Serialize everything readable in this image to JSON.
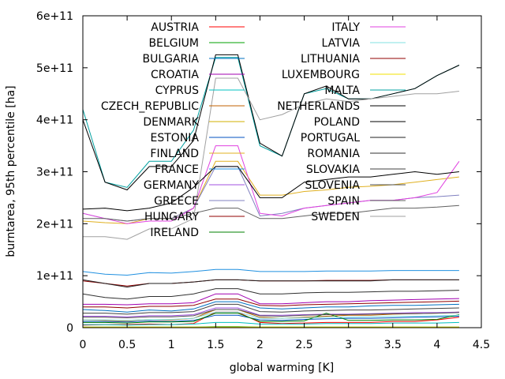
{
  "chart_data": {
    "type": "line",
    "xlabel": "global warming [K]",
    "ylabel": "burntarea, 95th percentile [ha]",
    "xlim": [
      0,
      4.5
    ],
    "ylim": [
      0,
      600000000000
    ],
    "xticks": [
      {
        "value": 0,
        "label": "0"
      },
      {
        "value": 0.5,
        "label": "0.5"
      },
      {
        "value": 1,
        "label": "1"
      },
      {
        "value": 1.5,
        "label": "1.5"
      },
      {
        "value": 2,
        "label": "2"
      },
      {
        "value": 2.5,
        "label": "2.5"
      },
      {
        "value": 3,
        "label": "3"
      },
      {
        "value": 3.5,
        "label": "3.5"
      },
      {
        "value": 4,
        "label": "4"
      },
      {
        "value": 4.5,
        "label": "4.5"
      }
    ],
    "yticks": [
      {
        "value": 0,
        "label": "0"
      },
      {
        "value": 100000000000,
        "label": "1e+11"
      },
      {
        "value": 200000000000,
        "label": "2e+11"
      },
      {
        "value": 300000000000,
        "label": "3e+11"
      },
      {
        "value": 400000000000,
        "label": "4e+11"
      },
      {
        "value": 500000000000,
        "label": "5e+11"
      },
      {
        "value": 600000000000,
        "label": "6e+11"
      }
    ],
    "grid": false,
    "legend_position": "top-right",
    "x": [
      0,
      0.25,
      0.5,
      0.75,
      1,
      1.25,
      1.5,
      1.75,
      2,
      2.25,
      2.5,
      2.75,
      3,
      3.25,
      3.5,
      3.75,
      4,
      4.25
    ],
    "series": [
      {
        "name": "AUSTRIA",
        "color": "#ff0000",
        "values": [
          5000000000.0,
          6000000000.0,
          6000000000.0,
          7000000000.0,
          6000000000.0,
          8000000000.0,
          30000000000.0,
          30000000000.0,
          10000000000.0,
          8000000000.0,
          9000000000.0,
          10000000000.0,
          10000000000.0,
          10000000000.0,
          12000000000.0,
          12000000000.0,
          15000000000.0,
          20000000000.0
        ]
      },
      {
        "name": "BELGIUM",
        "color": "#00a000",
        "values": [
          1000000000.0,
          1000000000.0,
          1000000000.0,
          1000000000.0,
          1000000000.0,
          1000000000.0,
          2000000000.0,
          2000000000.0,
          1000000000.0,
          1000000000.0,
          1000000000.0,
          1000000000.0,
          1000000000.0,
          1000000000.0,
          1000000000.0,
          1000000000.0,
          1000000000.0,
          1000000000.0
        ]
      },
      {
        "name": "BULGARIA",
        "color": "#0070c0",
        "values": [
          35000000000.0,
          33000000000.0,
          30000000000.0,
          34000000000.0,
          32000000000.0,
          36000000000.0,
          50000000000.0,
          50000000000.0,
          38000000000.0,
          36000000000.0,
          38000000000.0,
          40000000000.0,
          40000000000.0,
          42000000000.0,
          43000000000.0,
          43000000000.0,
          44000000000.0,
          45000000000.0
        ]
      },
      {
        "name": "CROATIA",
        "color": "#a000b0",
        "values": [
          45000000000.0,
          45000000000.0,
          44000000000.0,
          46000000000.0,
          46000000000.0,
          48000000000.0,
          65000000000.0,
          65000000000.0,
          46000000000.0,
          46000000000.0,
          48000000000.0,
          50000000000.0,
          50000000000.0,
          52000000000.0,
          53000000000.0,
          54000000000.0,
          55000000000.0,
          56000000000.0
        ]
      },
      {
        "name": "CYPRUS",
        "color": "#00c0c0",
        "values": [
          6000000000.0,
          6000000000.0,
          5000000000.0,
          6000000000.0,
          6000000000.0,
          7000000000.0,
          10000000000.0,
          10000000000.0,
          7000000000.0,
          7000000000.0,
          7000000000.0,
          8000000000.0,
          8000000000.0,
          8000000000.0,
          9000000000.0,
          9000000000.0,
          9000000000.0,
          10000000000.0
        ]
      },
      {
        "name": "CZECH_REPUBLIC",
        "color": "#c06000",
        "values": [
          15000000000.0,
          14000000000.0,
          13000000000.0,
          16000000000.0,
          15000000000.0,
          18000000000.0,
          35000000000.0,
          35000000000.0,
          20000000000.0,
          18000000000.0,
          20000000000.0,
          22000000000.0,
          24000000000.0,
          24000000000.0,
          26000000000.0,
          27000000000.0,
          28000000000.0,
          30000000000.0
        ]
      },
      {
        "name": "DENMARK",
        "color": "#d0b000",
        "values": [
          0,
          0,
          0,
          0,
          0,
          0,
          0,
          0,
          0,
          0,
          0,
          0,
          0,
          0,
          0,
          0,
          0,
          0
        ]
      },
      {
        "name": "ESTONIA",
        "color": "#0050c0",
        "values": [
          12000000000.0,
          12000000000.0,
          11000000000.0,
          13000000000.0,
          12000000000.0,
          14000000000.0,
          24000000000.0,
          24000000000.0,
          15000000000.0,
          14000000000.0,
          16000000000.0,
          17000000000.0,
          18000000000.0,
          18000000000.0,
          19000000000.0,
          20000000000.0,
          21000000000.0,
          22000000000.0
        ]
      },
      {
        "name": "FINLAND",
        "color": "#e0b020",
        "values": [
          205000000000.0,
          202000000000.0,
          200000000000.0,
          210000000000.0,
          210000000000.0,
          230000000000.0,
          320000000000.0,
          320000000000.0,
          255000000000.0,
          255000000000.0,
          262000000000.0,
          265000000000.0,
          270000000000.0,
          272000000000.0,
          275000000000.0,
          280000000000.0,
          285000000000.0,
          290000000000.0
        ]
      },
      {
        "name": "FRANCE",
        "color": "#2090e0",
        "values": [
          108000000000.0,
          103000000000.0,
          101000000000.0,
          106000000000.0,
          105000000000.0,
          108000000000.0,
          112000000000.0,
          112000000000.0,
          108000000000.0,
          108000000000.0,
          108000000000.0,
          109000000000.0,
          109000000000.0,
          109000000000.0,
          110000000000.0,
          110000000000.0,
          110000000000.0,
          110000000000.0
        ]
      },
      {
        "name": "GERMANY",
        "color": "#a050e0",
        "values": [
          22000000000.0,
          22000000000.0,
          21000000000.0,
          23000000000.0,
          23000000000.0,
          25000000000.0,
          38000000000.0,
          38000000000.0,
          24000000000.0,
          24000000000.0,
          25000000000.0,
          26000000000.0,
          26000000000.0,
          27000000000.0,
          28000000000.0,
          29000000000.0,
          29000000000.0,
          30000000000.0
        ]
      },
      {
        "name": "GREECE",
        "color": "#8080c0",
        "values": [
          220000000000.0,
          210000000000.0,
          205000000000.0,
          210000000000.0,
          210000000000.0,
          230000000000.0,
          310000000000.0,
          310000000000.0,
          215000000000.0,
          220000000000.0,
          230000000000.0,
          235000000000.0,
          240000000000.0,
          245000000000.0,
          245000000000.0,
          250000000000.0,
          252000000000.0,
          255000000000.0
        ]
      },
      {
        "name": "HUNGARY",
        "color": "#900000",
        "values": [
          90000000000.0,
          85000000000.0,
          80000000000.0,
          85000000000.0,
          85000000000.0,
          88000000000.0,
          92000000000.0,
          92000000000.0,
          90000000000.0,
          90000000000.0,
          90000000000.0,
          91000000000.0,
          91000000000.0,
          91000000000.0,
          92000000000.0,
          92000000000.0,
          92000000000.0,
          92000000000.0
        ]
      },
      {
        "name": "IRELAND",
        "color": "#008000",
        "values": [
          10000000000.0,
          10000000000.0,
          9000000000.0,
          11000000000.0,
          11000000000.0,
          12000000000.0,
          28000000000.0,
          28000000000.0,
          12000000000.0,
          12000000000.0,
          13000000000.0,
          28000000000.0,
          14000000000.0,
          14000000000.0,
          15000000000.0,
          15000000000.0,
          16000000000.0,
          25000000000.0
        ]
      },
      {
        "name": "ITALY",
        "color": "#e040e0",
        "values": [
          220000000000.0,
          210000000000.0,
          200000000000.0,
          205000000000.0,
          205000000000.0,
          230000000000.0,
          350000000000.0,
          350000000000.0,
          220000000000.0,
          215000000000.0,
          230000000000.0,
          235000000000.0,
          240000000000.0,
          245000000000.0,
          245000000000.0,
          250000000000.0,
          260000000000.0,
          320000000000.0
        ]
      },
      {
        "name": "LATVIA",
        "color": "#80e0e0",
        "values": [
          15000000000.0,
          15000000000.0,
          14000000000.0,
          16000000000.0,
          16000000000.0,
          18000000000.0,
          30000000000.0,
          30000000000.0,
          18000000000.0,
          18000000000.0,
          19000000000.0,
          20000000000.0,
          20000000000.0,
          21000000000.0,
          22000000000.0,
          22000000000.0,
          23000000000.0,
          24000000000.0
        ]
      },
      {
        "name": "LITHUANIA",
        "color": "#900000",
        "values": [
          40000000000.0,
          40000000000.0,
          38000000000.0,
          41000000000.0,
          41000000000.0,
          43000000000.0,
          55000000000.0,
          55000000000.0,
          43000000000.0,
          42000000000.0,
          44000000000.0,
          45000000000.0,
          46000000000.0,
          47000000000.0,
          48000000000.0,
          49000000000.0,
          50000000000.0,
          51000000000.0
        ]
      },
      {
        "name": "LUXEMBOURG",
        "color": "#f0e000",
        "values": [
          1000000000.0,
          1000000000.0,
          1000000000.0,
          1000000000.0,
          1000000000.0,
          1000000000.0,
          1000000000.0,
          1000000000.0,
          1000000000.0,
          1000000000.0,
          1000000000.0,
          1000000000.0,
          1000000000.0,
          1000000000.0,
          1000000000.0,
          1000000000.0,
          1000000000.0,
          1000000000.0
        ]
      },
      {
        "name": "MALTA",
        "color": "#00a0a0",
        "values": [
          420000000000.0,
          280000000000.0,
          270000000000.0,
          320000000000.0,
          320000000000.0,
          380000000000.0,
          520000000000.0,
          520000000000.0,
          350000000000.0,
          330000000000.0,
          450000000000.0,
          460000000000.0,
          440000000000.0,
          440000000000.0,
          450000000000.0,
          460000000000.0,
          485000000000.0,
          505000000000.0
        ]
      },
      {
        "name": "NETHERLANDS",
        "color": "#000000",
        "values": [
          228000000000.0,
          230000000000.0,
          225000000000.0,
          230000000000.0,
          240000000000.0,
          270000000000.0,
          310000000000.0,
          310000000000.0,
          250000000000.0,
          250000000000.0,
          280000000000.0,
          285000000000.0,
          290000000000.0,
          290000000000.0,
          295000000000.0,
          300000000000.0,
          295000000000.0,
          300000000000.0
        ]
      },
      {
        "name": "POLAND",
        "color": "#000000",
        "values": [
          400000000000.0,
          280000000000.0,
          265000000000.0,
          310000000000.0,
          310000000000.0,
          360000000000.0,
          525000000000.0,
          525000000000.0,
          355000000000.0,
          330000000000.0,
          450000000000.0,
          465000000000.0,
          440000000000.0,
          440000000000.0,
          450000000000.0,
          460000000000.0,
          485000000000.0,
          505000000000.0
        ]
      },
      {
        "name": "PORTUGAL",
        "color": "#202020",
        "values": [
          92000000000.0,
          85000000000.0,
          78000000000.0,
          85000000000.0,
          85000000000.0,
          88000000000.0,
          92000000000.0,
          92000000000.0,
          90000000000.0,
          90000000000.0,
          90000000000.0,
          90000000000.0,
          90000000000.0,
          90000000000.0,
          92000000000.0,
          92000000000.0,
          92000000000.0,
          92000000000.0
        ]
      },
      {
        "name": "ROMANIA",
        "color": "#303030",
        "values": [
          65000000000.0,
          58000000000.0,
          55000000000.0,
          60000000000.0,
          60000000000.0,
          65000000000.0,
          75000000000.0,
          75000000000.0,
          65000000000.0,
          65000000000.0,
          67000000000.0,
          68000000000.0,
          68000000000.0,
          69000000000.0,
          70000000000.0,
          70000000000.0,
          71000000000.0,
          72000000000.0
        ]
      },
      {
        "name": "SLOVAKIA",
        "color": "#404040",
        "values": [
          28000000000.0,
          28000000000.0,
          26000000000.0,
          29000000000.0,
          29000000000.0,
          31000000000.0,
          45000000000.0,
          45000000000.0,
          31000000000.0,
          30000000000.0,
          32000000000.0,
          33000000000.0,
          34000000000.0,
          34000000000.0,
          35000000000.0,
          36000000000.0,
          37000000000.0,
          38000000000.0
        ]
      },
      {
        "name": "SLOVENIA",
        "color": "#505050",
        "values": [
          20000000000.0,
          20000000000.0,
          19000000000.0,
          21000000000.0,
          21000000000.0,
          23000000000.0,
          35000000000.0,
          35000000000.0,
          23000000000.0,
          22000000000.0,
          24000000000.0,
          25000000000.0,
          25000000000.0,
          26000000000.0,
          27000000000.0,
          27000000000.0,
          28000000000.0,
          29000000000.0
        ]
      },
      {
        "name": "SPAIN",
        "color": "#606060",
        "values": [
          210000000000.0,
          210000000000.0,
          205000000000.0,
          210000000000.0,
          210000000000.0,
          220000000000.0,
          230000000000.0,
          230000000000.0,
          210000000000.0,
          210000000000.0,
          215000000000.0,
          220000000000.0,
          220000000000.0,
          225000000000.0,
          230000000000.0,
          230000000000.0,
          232000000000.0,
          235000000000.0
        ]
      },
      {
        "name": "SWEDEN",
        "color": "#a0a0a0",
        "values": [
          175000000000.0,
          175000000000.0,
          170000000000.0,
          190000000000.0,
          190000000000.0,
          210000000000.0,
          480000000000.0,
          480000000000.0,
          400000000000.0,
          410000000000.0,
          430000000000.0,
          440000000000.0,
          435000000000.0,
          440000000000.0,
          445000000000.0,
          450000000000.0,
          450000000000.0,
          455000000000.0
        ]
      }
    ]
  }
}
